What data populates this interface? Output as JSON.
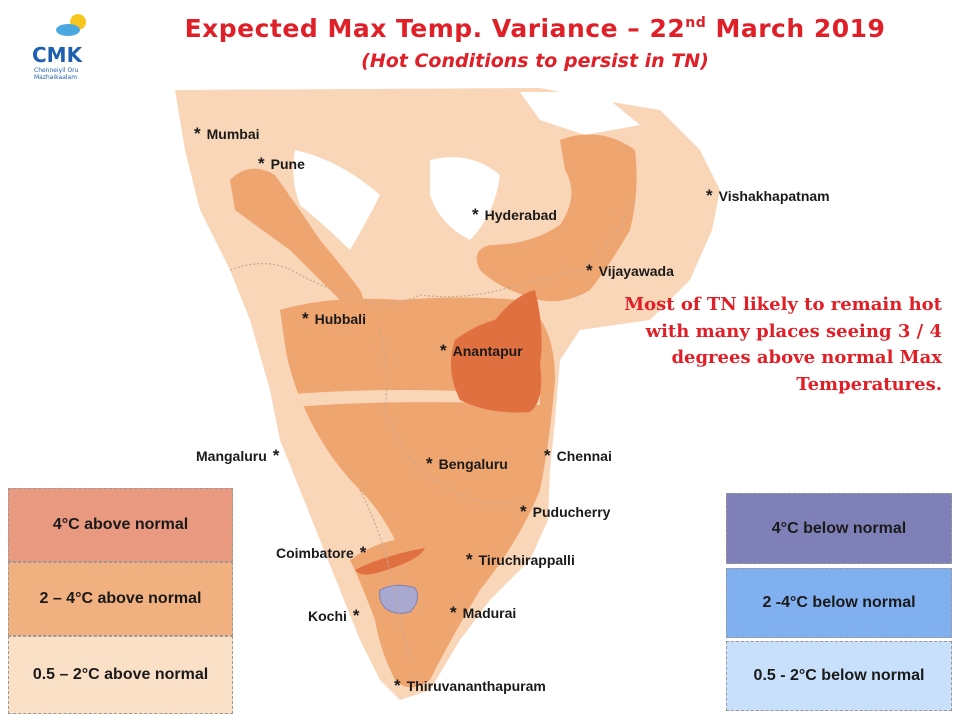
{
  "title": {
    "main": "Expected Max Temp. Variance – 22",
    "ordinal": "nd",
    "rest": " March 2019",
    "subtitle": "(Hot Conditions to persist in TN)"
  },
  "logo": {
    "text": "CMK",
    "tagline_1": "Chenneiyil Oru",
    "tagline_2": "Mazhaikaalam",
    "icon": "sun-cloud-icon"
  },
  "cities": [
    {
      "name": "Mumbai",
      "star": "*"
    },
    {
      "name": "Pune",
      "star": "*"
    },
    {
      "name": "Hyderabad",
      "star": "*"
    },
    {
      "name": "Vishakhapatnam",
      "star": "*"
    },
    {
      "name": "Vijayawada",
      "star": "*"
    },
    {
      "name": "Hubbali",
      "star": "*"
    },
    {
      "name": "Anantapur",
      "star": "*"
    },
    {
      "name": "Mangaluru",
      "star": "*"
    },
    {
      "name": "Bengaluru",
      "star": "*"
    },
    {
      "name": "Chennai",
      "star": "*"
    },
    {
      "name": "Puducherry",
      "star": "*"
    },
    {
      "name": "Coimbatore",
      "star": "*"
    },
    {
      "name": "Tiruchirappalli",
      "star": "*"
    },
    {
      "name": "Kochi",
      "star": "*"
    },
    {
      "name": "Madurai",
      "star": "*"
    },
    {
      "name": "Thiruvananthapuram",
      "star": "*"
    }
  ],
  "note": "Most of TN likely to remain hot with many places seeing 3 / 4 degrees above normal Max Temperatures.",
  "legend_above": [
    {
      "label": "4°C above normal",
      "color": "#e8997f"
    },
    {
      "label": "2 – 4°C above normal",
      "color": "#f0b07f"
    },
    {
      "label": "0.5 – 2°C above normal",
      "color": "#fbe0c8"
    }
  ],
  "legend_below": [
    {
      "label": "4°C  below normal",
      "color": "#8080b8"
    },
    {
      "label": "2 -4°C below normal",
      "color": "#80b0f0"
    },
    {
      "label": "0.5 - 2°C below normal",
      "color": "#c8e0fb"
    }
  ],
  "colors": {
    "light_anomaly": "#fad6b8",
    "moderate_anomaly": "#eea570",
    "strong_anomaly": "#e07040",
    "cool_patch": "#a8a8d0",
    "title": "#e02028"
  }
}
